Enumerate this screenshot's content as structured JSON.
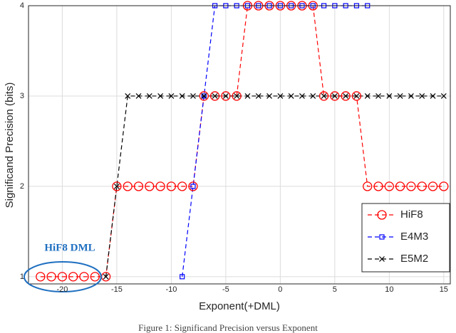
{
  "chart_data": {
    "type": "line",
    "caption": "Figure 1: Significand Precision versus Exponent",
    "xlabel": "Exponent(+DML)",
    "ylabel": "Significand Precision (bits)",
    "annotation": "HiF8 DML",
    "xlim": [
      -23.1,
      15.6
    ],
    "xticks": [
      -20,
      -15,
      -10,
      -5,
      0,
      5,
      10,
      15
    ],
    "ylim": [
      0.92,
      4
    ],
    "yticks": [
      1,
      2,
      3,
      4
    ],
    "grid": true,
    "legend": "lower right",
    "series": [
      {
        "name": "HiF8",
        "color": "#ff0000",
        "marker": "circle",
        "x": [
          -22,
          -21,
          -20,
          -19,
          -18,
          -17,
          -16,
          -15,
          -14,
          -13,
          -12,
          -11,
          -10,
          -9,
          -8,
          -7,
          -6,
          -5,
          -4,
          -3,
          -2,
          -1,
          0,
          1,
          2,
          3,
          4,
          5,
          6,
          7,
          8,
          9,
          10,
          11,
          12,
          13,
          14,
          15
        ],
        "values": [
          1,
          1,
          1,
          1,
          1,
          1,
          1,
          2,
          2,
          2,
          2,
          2,
          2,
          2,
          2,
          3,
          3,
          3,
          3,
          4,
          4,
          4,
          4,
          4,
          4,
          4,
          3,
          3,
          3,
          3,
          2,
          2,
          2,
          2,
          2,
          2,
          2,
          2
        ]
      },
      {
        "name": "E4M3",
        "color": "#0000ff",
        "marker": "square",
        "x": [
          -9,
          -8,
          -7,
          -6,
          -5,
          -4,
          -3,
          -2,
          -1,
          0,
          1,
          2,
          3,
          4,
          5,
          6,
          7,
          8
        ],
        "values": [
          1,
          2,
          3,
          4,
          4,
          4,
          4,
          4,
          4,
          4,
          4,
          4,
          4,
          4,
          4,
          4,
          4,
          4
        ]
      },
      {
        "name": "E5M2",
        "color": "#000000",
        "marker": "x",
        "x": [
          -16,
          -15,
          -14,
          -13,
          -12,
          -11,
          -10,
          -9,
          -8,
          -7,
          -6,
          -5,
          -4,
          -3,
          -2,
          -1,
          0,
          1,
          2,
          3,
          4,
          5,
          6,
          7,
          8,
          9,
          10,
          11,
          12,
          13,
          14,
          15
        ],
        "values": [
          1,
          2,
          3,
          3,
          3,
          3,
          3,
          3,
          3,
          3,
          3,
          3,
          3,
          3,
          3,
          3,
          3,
          3,
          3,
          3,
          3,
          3,
          3,
          3,
          3,
          3,
          3,
          3,
          3,
          3,
          3,
          3
        ]
      }
    ]
  }
}
